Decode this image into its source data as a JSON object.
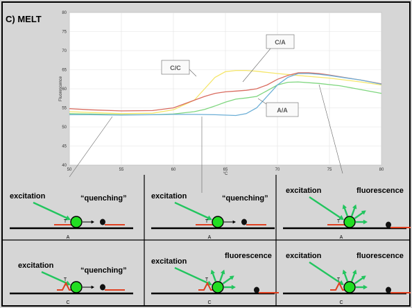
{
  "panel_label": "C) MELT",
  "chart_data": {
    "type": "line",
    "xlabel": "°C",
    "ylabel": "Fluorescence",
    "xlim": [
      50,
      80
    ],
    "ylim": [
      40,
      80
    ],
    "x_ticks": [
      50,
      55,
      60,
      65,
      70,
      75,
      80
    ],
    "y_ticks": [
      40,
      45,
      50,
      55,
      60,
      65,
      70,
      75,
      80
    ],
    "grid": true,
    "annotations": [
      "C/A",
      "C/C",
      "A/A"
    ],
    "series": [
      {
        "color": "#f5e66a",
        "x": [
          50,
          52,
          55,
          58,
          60,
          62,
          63,
          64,
          65,
          66,
          67,
          68,
          69,
          70,
          72,
          75,
          78,
          80
        ],
        "y": [
          54,
          53.8,
          53.5,
          53.6,
          54.5,
          57,
          60,
          63,
          64.5,
          64.8,
          64.8,
          64.6,
          64.3,
          64,
          63.5,
          62.8,
          61.8,
          61
        ]
      },
      {
        "color": "#d96b5f",
        "x": [
          50,
          52,
          55,
          58,
          60,
          61,
          62,
          63,
          64,
          65,
          66,
          67,
          68,
          69,
          70,
          71,
          72,
          73,
          74,
          75,
          78,
          80
        ],
        "y": [
          54.8,
          54.5,
          54.2,
          54.3,
          55,
          56,
          57,
          58,
          58.8,
          59.2,
          59.4,
          59.6,
          60,
          61,
          62.5,
          63.5,
          64.2,
          64.2,
          64,
          63.6,
          62.3,
          61.3
        ]
      },
      {
        "color": "#7ed67e",
        "x": [
          50,
          52,
          55,
          58,
          60,
          61,
          62,
          63,
          64,
          65,
          66,
          67,
          68,
          69,
          70,
          71,
          72,
          74,
          76,
          78,
          80
        ],
        "y": [
          53.5,
          53.4,
          53.2,
          53.2,
          53.4,
          53.7,
          54,
          54.6,
          55.5,
          56.5,
          57.3,
          57.6,
          58,
          59.5,
          61,
          61.7,
          61.8,
          61.4,
          60.8,
          59.8,
          58.8
        ]
      },
      {
        "color": "#6baed6",
        "x": [
          50,
          52,
          55,
          58,
          60,
          62,
          64,
          66,
          67,
          68,
          69,
          70,
          71,
          72,
          73,
          74,
          75,
          78,
          80
        ],
        "y": [
          53.2,
          53.2,
          53.1,
          53.2,
          53.3,
          53.3,
          53.2,
          53,
          53.5,
          55,
          58,
          61,
          63,
          64,
          64,
          63.8,
          63.5,
          62.3,
          61.2
        ]
      }
    ]
  },
  "diagram": {
    "excitation": "excitation",
    "quenching": "“quenching”",
    "fluorescence": "fluorescence",
    "T": "T",
    "A": "A",
    "C": "C",
    "cells": [
      {
        "base": "A",
        "state": "quenching",
        "bump": false
      },
      {
        "base": "A",
        "state": "quenching",
        "bump": false
      },
      {
        "base": "A",
        "state": "fluorescence",
        "bump": false
      },
      {
        "base": "C",
        "state": "quenching",
        "bump": true
      },
      {
        "base": "C",
        "state": "fluorescence",
        "bump": true
      },
      {
        "base": "C",
        "state": "fluorescence",
        "bump": true
      }
    ]
  }
}
